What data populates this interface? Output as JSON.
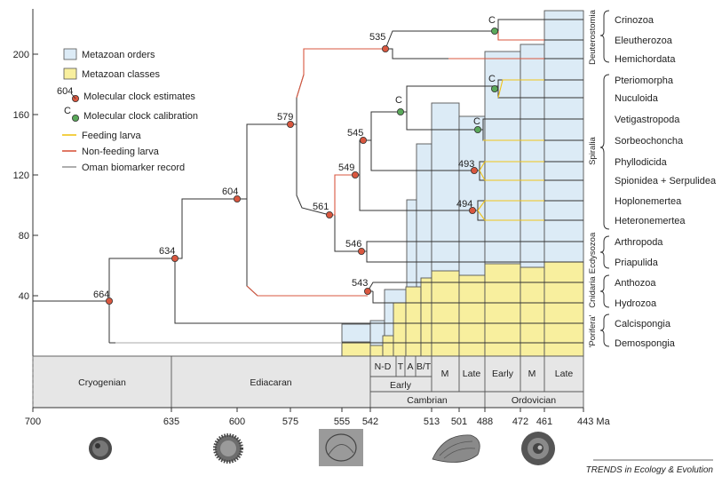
{
  "chart_data": {
    "type": "diagram",
    "y_ticks": [
      "40",
      "80",
      "120",
      "160",
      "200"
    ],
    "x_ticks": [
      "700",
      "635",
      "600",
      "575",
      "555",
      "542",
      "513",
      "501",
      "488",
      "472",
      "461",
      "443 Ma"
    ],
    "legend": {
      "orders": "Metazoan orders",
      "classes": "Metazoan classes",
      "clock_estimate_sample": "604",
      "clock_estimates": "Molecular clock estimates",
      "calibration_sample": "C",
      "calibration": "Molecular clock calibration",
      "feeding": "Feeding larva",
      "nonfeeding": "Non-feeding larva",
      "oman": "Oman biomarker record"
    },
    "colors": {
      "orders_fill": "#dcebf6",
      "classes_fill": "#f8ef9e",
      "estimate_node": "#d9573f",
      "calibration_node": "#5aa85a",
      "feeding": "#f0c419",
      "nonfeeding": "#d9573f",
      "oman": "#999999",
      "time_band": "#e6e6e6"
    },
    "nodes": [
      {
        "label": "664"
      },
      {
        "label": "634"
      },
      {
        "label": "604"
      },
      {
        "label": "579"
      },
      {
        "label": "561"
      },
      {
        "label": "549"
      },
      {
        "label": "545"
      },
      {
        "label": "546"
      },
      {
        "label": "543"
      },
      {
        "label": "535"
      },
      {
        "label": "493"
      },
      {
        "label": "494"
      },
      {
        "label": "C"
      },
      {
        "label": "C"
      },
      {
        "label": "C"
      },
      {
        "label": "C"
      }
    ],
    "taxa": [
      "Crinozoa",
      "Eleutherozoa",
      "Hemichordata",
      "Pteriomorpha",
      "Nuculoida",
      "Vetigastropoda",
      "Sorbeochoncha",
      "Phyllodicida",
      "Spionidea + Serpulidea",
      "Hoplonemertea",
      "Heteronemertea",
      "Arthropoda",
      "Priapulida",
      "Anthozoa",
      "Hydrozoa",
      "Calcispongia",
      "Demospongia"
    ],
    "groups": [
      "Deuterostomia",
      "Spiralia",
      "Ecdysozoa",
      "Cnidaria",
      "'Porifera'"
    ],
    "periods": {
      "cryogenian": "Cryogenian",
      "ediacaran": "Ediacaran",
      "cambrian": "Cambrian",
      "ordovician": "Ordovician",
      "early": "Early",
      "nd": "N-D",
      "t": "T",
      "a": "A",
      "bt": "B/T",
      "m": "M",
      "late": "Late",
      "ord_early": "Early",
      "ord_m": "M",
      "ord_late": "Late"
    },
    "credit": "TRENDS in Ecology & Evolution"
  }
}
